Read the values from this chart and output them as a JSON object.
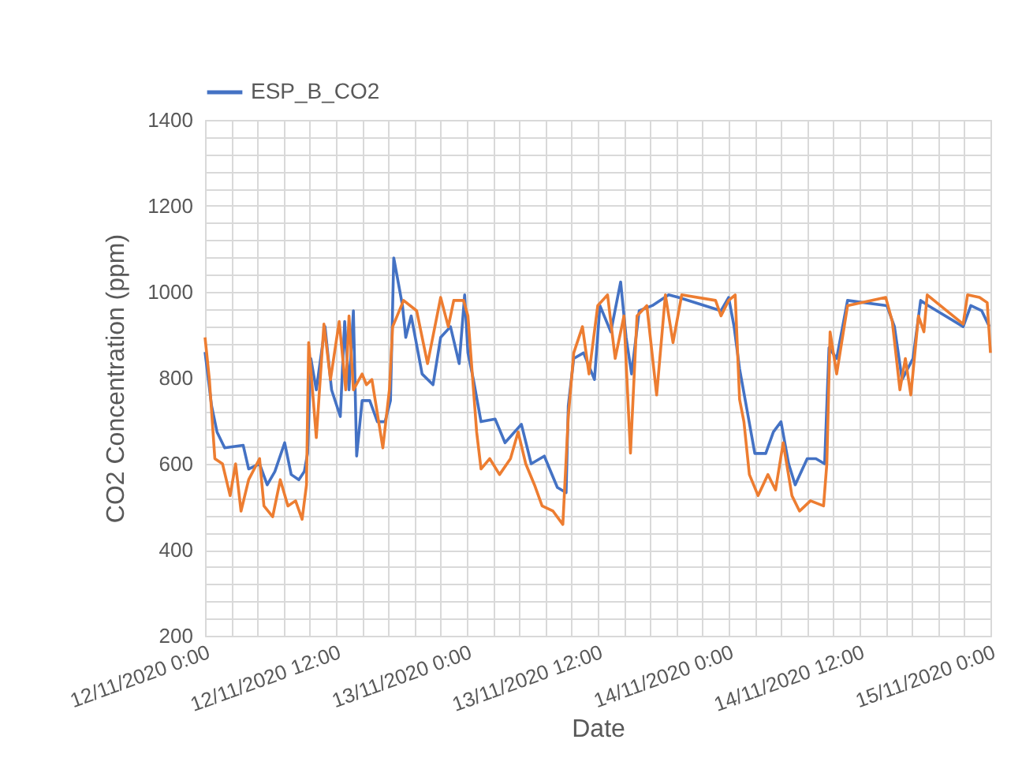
{
  "chart_data": {
    "type": "line",
    "xlabel": "Date",
    "ylabel": "CO2 Concentration (ppm)",
    "legend": "top",
    "grid": true,
    "line_style": "solid",
    "marker": "none",
    "xlim": [
      "2020-11-12T00:00",
      "2020-11-15T00:00"
    ],
    "xticks": [
      {
        "value": "2020-11-12T00:00",
        "label": "12/11/2020 0:00"
      },
      {
        "value": "2020-11-12T02:24",
        "label": null
      },
      {
        "value": "2020-11-12T04:48",
        "label": null
      },
      {
        "value": "2020-11-12T07:12",
        "label": null
      },
      {
        "value": "2020-11-12T09:36",
        "label": null
      },
      {
        "value": "2020-11-12T12:00",
        "label": "12/11/2020 12:00"
      },
      {
        "value": "2020-11-12T14:24",
        "label": null
      },
      {
        "value": "2020-11-12T16:48",
        "label": null
      },
      {
        "value": "2020-11-12T19:12",
        "label": null
      },
      {
        "value": "2020-11-12T21:36",
        "label": null
      },
      {
        "value": "2020-11-13T00:00",
        "label": "13/11/2020 0:00"
      },
      {
        "value": "2020-11-13T02:24",
        "label": null
      },
      {
        "value": "2020-11-13T04:48",
        "label": null
      },
      {
        "value": "2020-11-13T07:12",
        "label": null
      },
      {
        "value": "2020-11-13T09:36",
        "label": null
      },
      {
        "value": "2020-11-13T12:00",
        "label": "13/11/2020 12:00"
      },
      {
        "value": "2020-11-13T14:24",
        "label": null
      },
      {
        "value": "2020-11-13T16:48",
        "label": null
      },
      {
        "value": "2020-11-13T19:12",
        "label": null
      },
      {
        "value": "2020-11-13T21:36",
        "label": null
      },
      {
        "value": "2020-11-14T00:00",
        "label": "14/11/2020 0:00"
      },
      {
        "value": "2020-11-14T02:24",
        "label": null
      },
      {
        "value": "2020-11-14T04:48",
        "label": null
      },
      {
        "value": "2020-11-14T07:12",
        "label": null
      },
      {
        "value": "2020-11-14T09:36",
        "label": null
      },
      {
        "value": "2020-11-14T12:00",
        "label": "14/11/2020 12:00"
      },
      {
        "value": "2020-11-14T14:24",
        "label": null
      },
      {
        "value": "2020-11-14T16:48",
        "label": null
      },
      {
        "value": "2020-11-14T19:12",
        "label": null
      },
      {
        "value": "2020-11-14T21:36",
        "label": null
      },
      {
        "value": "2020-11-15T00:00",
        "label": "15/11/2020 0:00"
      }
    ],
    "ylim": [
      200,
      1400
    ],
    "yticks": [
      200,
      {
        "value": 240,
        "label": null
      },
      {
        "value": 280,
        "label": null
      },
      {
        "value": 320,
        "label": null
      },
      {
        "value": 360,
        "label": null
      },
      400,
      {
        "value": 440,
        "label": null
      },
      {
        "value": 480,
        "label": null
      },
      {
        "value": 520,
        "label": null
      },
      {
        "value": 560,
        "label": null
      },
      600,
      {
        "value": 640,
        "label": null
      },
      {
        "value": 680,
        "label": null
      },
      {
        "value": 720,
        "label": null
      },
      {
        "value": 760,
        "label": null
      },
      800,
      {
        "value": 840,
        "label": null
      },
      {
        "value": 880,
        "label": null
      },
      {
        "value": 920,
        "label": null
      },
      {
        "value": 960,
        "label": null
      },
      1000,
      {
        "value": 1040,
        "label": null
      },
      {
        "value": 1080,
        "label": null
      },
      {
        "value": 1120,
        "label": null
      },
      {
        "value": 1160,
        "label": null
      },
      1200,
      {
        "value": 1240,
        "label": null
      },
      {
        "value": 1280,
        "label": null
      },
      {
        "value": 1320,
        "label": null
      },
      {
        "value": 1360,
        "label": null
      },
      1400
    ],
    "series": [
      {
        "name": "ESP_B_CO2",
        "color": "#4472c4",
        "x": [
          "2020-11-12T00:00",
          "2020-11-12T00:36",
          "2020-11-12T01:06",
          "2020-11-12T01:48",
          "2020-11-12T03:30",
          "2020-11-12T04:00",
          "2020-11-12T05:00",
          "2020-11-12T05:42",
          "2020-11-12T06:24",
          "2020-11-12T07:18",
          "2020-11-12T07:54",
          "2020-11-12T08:36",
          "2020-11-12T09:06",
          "2020-11-12T09:24",
          "2020-11-12T09:42",
          "2020-11-12T10:12",
          "2020-11-12T11:00",
          "2020-11-12T11:36",
          "2020-11-12T12:24",
          "2020-11-12T12:48",
          "2020-11-12T13:12",
          "2020-11-12T13:36",
          "2020-11-12T13:54",
          "2020-11-12T14:24",
          "2020-11-12T15:06",
          "2020-11-12T15:48",
          "2020-11-12T16:30",
          "2020-11-12T17:00",
          "2020-11-12T17:18",
          "2020-11-12T18:06",
          "2020-11-12T18:24",
          "2020-11-12T18:54",
          "2020-11-12T19:54",
          "2020-11-12T20:54",
          "2020-11-12T21:36",
          "2020-11-12T22:30",
          "2020-11-12T23:18",
          "2020-11-12T23:48",
          "2020-11-13T00:06",
          "2020-11-13T00:36",
          "2020-11-13T01:18",
          "2020-11-13T02:36",
          "2020-11-13T03:30",
          "2020-11-13T05:00",
          "2020-11-13T05:54",
          "2020-11-13T07:06",
          "2020-11-13T08:18",
          "2020-11-13T09:06",
          "2020-11-13T09:18",
          "2020-11-13T09:48",
          "2020-11-13T10:42",
          "2020-11-13T11:42",
          "2020-11-13T12:12",
          "2020-11-13T13:12",
          "2020-11-13T14:06",
          "2020-11-13T14:36",
          "2020-11-13T15:06",
          "2020-11-13T15:48",
          "2020-11-13T17:00",
          "2020-11-13T18:30",
          "2020-11-13T19:24",
          "2020-11-13T23:18",
          "2020-11-14T00:00",
          "2020-11-14T00:30",
          "2020-11-14T01:00",
          "2020-11-14T01:42",
          "2020-11-14T02:24",
          "2020-11-14T03:24",
          "2020-11-14T04:06",
          "2020-11-14T04:48",
          "2020-11-14T05:30",
          "2020-11-14T06:06",
          "2020-11-14T07:12",
          "2020-11-14T08:00",
          "2020-11-14T08:48",
          "2020-11-14T09:12",
          "2020-11-14T09:54",
          "2020-11-14T10:54",
          "2020-11-14T14:30",
          "2020-11-14T15:12",
          "2020-11-14T15:54",
          "2020-11-14T16:54",
          "2020-11-14T17:36",
          "2020-11-14T18:18",
          "2020-11-14T21:30",
          "2020-11-14T22:12",
          "2020-11-14T23:12",
          "2020-11-14T23:54"
        ],
        "values": [
          860,
          735,
          674,
          637,
          643,
          588,
          600,
          551,
          582,
          649,
          575,
          563,
          582,
          624,
          845,
          772,
          919,
          772,
          710,
          931,
          772,
          956,
          618,
          747,
          747,
          698,
          698,
          747,
          1079,
          968,
          894,
          944,
          809,
          784,
          894,
          919,
          833,
          993,
          858,
          796,
          698,
          704,
          649,
          692,
          600,
          618,
          545,
          533,
          735,
          845,
          858,
          796,
          968,
          907,
          1023,
          894,
          809,
          956,
          968,
          993,
          987,
          956,
          987,
          919,
          821,
          723,
          624,
          624,
          674,
          698,
          600,
          551,
          612,
          612,
          600,
          870,
          845,
          980,
          968,
          919,
          796,
          845,
          980,
          968,
          919,
          968,
          956,
          919
        ]
      },
      {
        "color": "#ed7d31",
        "x": [
          "2020-11-12T00:00",
          "2020-11-12T00:24",
          "2020-11-12T00:54",
          "2020-11-12T01:36",
          "2020-11-12T02:18",
          "2020-11-12T02:48",
          "2020-11-12T03:18",
          "2020-11-12T04:00",
          "2020-11-12T05:00",
          "2020-11-12T05:24",
          "2020-11-12T06:12",
          "2020-11-12T06:54",
          "2020-11-12T07:36",
          "2020-11-12T08:18",
          "2020-11-12T08:54",
          "2020-11-12T09:18",
          "2020-11-12T09:30",
          "2020-11-12T10:12",
          "2020-11-12T10:54",
          "2020-11-12T11:30",
          "2020-11-12T12:18",
          "2020-11-12T12:54",
          "2020-11-12T13:12",
          "2020-11-12T13:36",
          "2020-11-12T14:24",
          "2020-11-12T14:48",
          "2020-11-12T15:18",
          "2020-11-12T16:18",
          "2020-11-12T16:54",
          "2020-11-12T17:12",
          "2020-11-12T18:12",
          "2020-11-12T19:24",
          "2020-11-12T20:24",
          "2020-11-12T21:36",
          "2020-11-12T22:18",
          "2020-11-12T22:48",
          "2020-11-12T23:42",
          "2020-11-13T00:06",
          "2020-11-13T00:54",
          "2020-11-13T01:18",
          "2020-11-13T02:06",
          "2020-11-13T03:00",
          "2020-11-13T04:00",
          "2020-11-13T04:42",
          "2020-11-13T05:24",
          "2020-11-13T06:12",
          "2020-11-13T06:54",
          "2020-11-13T07:54",
          "2020-11-13T08:48",
          "2020-11-13T09:18",
          "2020-11-13T09:48",
          "2020-11-13T10:36",
          "2020-11-13T11:12",
          "2020-11-13T12:00",
          "2020-11-13T12:54",
          "2020-11-13T13:36",
          "2020-11-13T14:24",
          "2020-11-13T15:00",
          "2020-11-13T15:36",
          "2020-11-13T16:30",
          "2020-11-13T17:24",
          "2020-11-13T18:12",
          "2020-11-13T18:54",
          "2020-11-13T19:42",
          "2020-11-13T22:48",
          "2020-11-13T23:18",
          "2020-11-14T00:00",
          "2020-11-14T00:36",
          "2020-11-14T01:00",
          "2020-11-14T01:24",
          "2020-11-14T01:54",
          "2020-11-14T02:42",
          "2020-11-14T03:36",
          "2020-11-14T04:18",
          "2020-11-14T05:00",
          "2020-11-14T05:48",
          "2020-11-14T06:30",
          "2020-11-14T07:30",
          "2020-11-14T08:42",
          "2020-11-14T09:00",
          "2020-11-14T09:18",
          "2020-11-14T09:54",
          "2020-11-14T10:54",
          "2020-11-14T14:24",
          "2020-11-14T15:00",
          "2020-11-14T15:42",
          "2020-11-14T16:12",
          "2020-11-14T16:42",
          "2020-11-14T17:24",
          "2020-11-14T17:54",
          "2020-11-14T18:12",
          "2020-11-14T21:30",
          "2020-11-14T21:54",
          "2020-11-14T23:00",
          "2020-11-14T23:42",
          "2020-11-15T00:00"
        ],
        "values": [
          894,
          796,
          612,
          600,
          526,
          600,
          490,
          563,
          612,
          502,
          477,
          563,
          502,
          514,
          471,
          551,
          882,
          661,
          925,
          796,
          931,
          772,
          944,
          772,
          809,
          784,
          796,
          637,
          772,
          919,
          980,
          956,
          833,
          987,
          919,
          980,
          980,
          944,
          674,
          588,
          612,
          575,
          612,
          674,
          600,
          551,
          502,
          490,
          459,
          710,
          858,
          919,
          809,
          968,
          993,
          845,
          944,
          625,
          944,
          968,
          760,
          993,
          882,
          993,
          980,
          944,
          980,
          993,
          750,
          698,
          575,
          526,
          575,
          539,
          649,
          526,
          490,
          514,
          502,
          600,
          907,
          809,
          968,
          987,
          931,
          772,
          845,
          760,
          944,
          907,
          993,
          925,
          993,
          987,
          975,
          858
        ]
      }
    ]
  }
}
